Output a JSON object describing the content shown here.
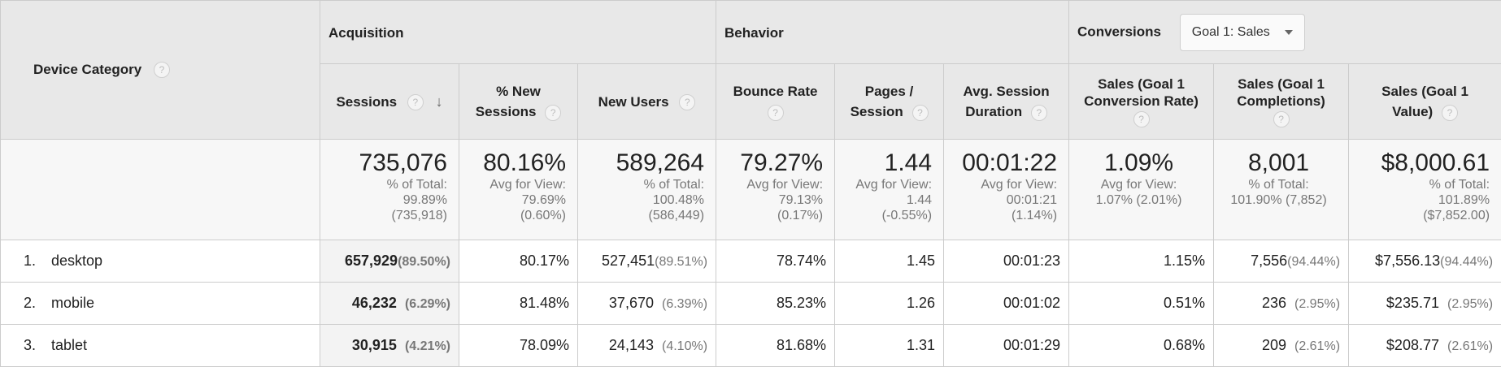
{
  "header": {
    "device_category": "Device Category",
    "acquisition": "Acquisition",
    "behavior": "Behavior",
    "conversions": "Conversions",
    "goal_select": "Goal 1: Sales",
    "help": "?",
    "sort_icon": "↓",
    "columns": [
      {
        "l1": "Sessions",
        "l2": ""
      },
      {
        "l1": "% New",
        "l2": "Sessions"
      },
      {
        "l1": "New Users",
        "l2": ""
      },
      {
        "l1": "Bounce Rate",
        "l2": ""
      },
      {
        "l1": "Pages /",
        "l2": "Session"
      },
      {
        "l1": "Avg. Session",
        "l2": "Duration"
      },
      {
        "l1": "Sales (Goal 1",
        "l2": "Conversion Rate)"
      },
      {
        "l1": "Sales (Goal 1",
        "l2": "Completions)"
      },
      {
        "l1": "Sales (Goal 1",
        "l2": "Value)"
      }
    ]
  },
  "totals": [
    {
      "value": "735,076",
      "line1": "% of Total:",
      "line2": "99.89%",
      "line3": "(735,918)"
    },
    {
      "value": "80.16%",
      "line1": "Avg for View:",
      "line2": "79.69%",
      "line3": "(0.60%)"
    },
    {
      "value": "589,264",
      "line1": "% of Total:",
      "line2": "100.48%",
      "line3": "(586,449)"
    },
    {
      "value": "79.27%",
      "line1": "Avg for View:",
      "line2": "79.13%",
      "line3": "(0.17%)"
    },
    {
      "value": "1.44",
      "line1": "Avg for View:",
      "line2": "1.44",
      "line3": "(-0.55%)"
    },
    {
      "value": "00:01:22",
      "line1": "Avg for View:",
      "line2": "00:01:21",
      "line3": "(1.14%)"
    },
    {
      "value": "1.09%",
      "line1": "Avg for View:",
      "line2": "1.07% (2.01%)",
      "line3": ""
    },
    {
      "value": "8,001",
      "line1": "% of Total:",
      "line2": "101.90% (7,852)",
      "line3": ""
    },
    {
      "value": "$8,000.61",
      "line1": "% of Total:",
      "line2": "101.89%",
      "line3": "($7,852.00)"
    }
  ],
  "rows": [
    {
      "rank": "1.",
      "name": "desktop",
      "sessions": "657,929",
      "sessions_pct": "(89.50%)",
      "new_sessions": "80.17%",
      "new_users": "527,451",
      "new_users_pct": "(89.51%)",
      "bounce": "78.74%",
      "pages": "1.45",
      "duration": "00:01:23",
      "conv_rate": "1.15%",
      "completions": "7,556",
      "completions_pct": "(94.44%)",
      "value": "$7,556.13",
      "value_pct": "(94.44%)"
    },
    {
      "rank": "2.",
      "name": "mobile",
      "sessions": "46,232",
      "sessions_pct": "(6.29%)",
      "new_sessions": "81.48%",
      "new_users": "37,670",
      "new_users_pct": "(6.39%)",
      "bounce": "85.23%",
      "pages": "1.26",
      "duration": "00:01:02",
      "conv_rate": "0.51%",
      "completions": "236",
      "completions_pct": "(2.95%)",
      "value": "$235.71",
      "value_pct": "(2.95%)"
    },
    {
      "rank": "3.",
      "name": "tablet",
      "sessions": "30,915",
      "sessions_pct": "(4.21%)",
      "new_sessions": "78.09%",
      "new_users": "24,143",
      "new_users_pct": "(4.10%)",
      "bounce": "81.68%",
      "pages": "1.31",
      "duration": "00:01:29",
      "conv_rate": "0.68%",
      "completions": "209",
      "completions_pct": "(2.61%)",
      "value": "$208.77",
      "value_pct": "(2.61%)"
    }
  ]
}
